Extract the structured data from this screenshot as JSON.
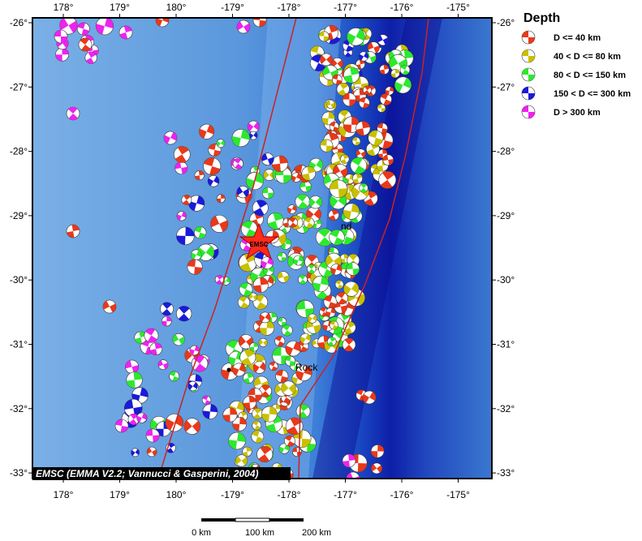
{
  "map": {
    "lon_range": [
      177.5,
      -174.2
    ],
    "lat_range": [
      -33.1,
      -25.9
    ],
    "lon_ticks": [
      {
        "value": 178,
        "label": "178°"
      },
      {
        "value": 179,
        "label": "179°"
      },
      {
        "value": 180,
        "label": "180°"
      },
      {
        "value": -179,
        "label": "-179°"
      },
      {
        "value": -178,
        "label": "-178°"
      },
      {
        "value": -177,
        "label": "-177°"
      },
      {
        "value": -176,
        "label": "-176°"
      },
      {
        "value": -175,
        "label": "-175°"
      }
    ],
    "lat_ticks": [
      {
        "value": -26,
        "label": "-26°"
      },
      {
        "value": -27,
        "label": "-27°"
      },
      {
        "value": -28,
        "label": "-28°"
      },
      {
        "value": -29,
        "label": "-29°"
      },
      {
        "value": -30,
        "label": "-30°"
      },
      {
        "value": -31,
        "label": "-31°"
      },
      {
        "value": -32,
        "label": "-32°"
      },
      {
        "value": -33,
        "label": "-33°"
      }
    ],
    "colors": {
      "ocean_light": "#6fa8e0",
      "ocean_mid": "#2f6fd4",
      "trench_deep": "#1010a8",
      "plate_boundary": "#cc2222"
    },
    "epicenter_label": "EMSC",
    "epicenter_color": "#ff2a1a",
    "places": [
      {
        "name": "Raoul Island",
        "shown": "nd"
      },
      {
        "name": "L'Esperance Rock",
        "shown": "Rock"
      }
    ],
    "credit": "EMSC (EMMA V2.2; Vannucci & Gasperini, 2004)",
    "scale_bar": {
      "labels": [
        "0 km",
        "100 km",
        "200 km"
      ]
    }
  },
  "legend": {
    "title": "Depth",
    "items": [
      {
        "label": "D <= 40 km",
        "color": "#e8391a"
      },
      {
        "label": "40 < D <= 80 km",
        "color": "#c8c000"
      },
      {
        "label": "80 < D <= 150 km",
        "color": "#2ee82e"
      },
      {
        "label": "150 < D <= 300 km",
        "color": "#1a1ad8"
      },
      {
        "label": "D > 300 km",
        "color": "#ee22ee"
      }
    ]
  }
}
